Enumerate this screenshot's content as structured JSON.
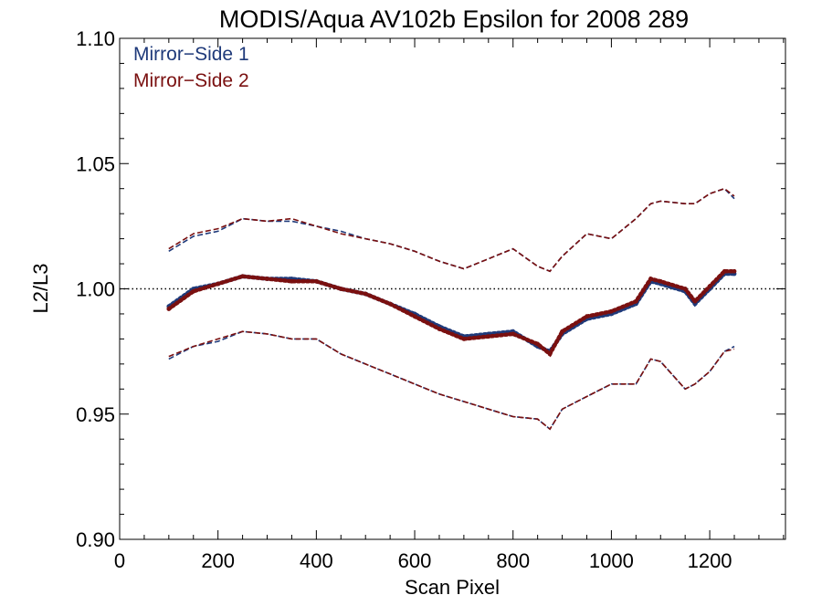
{
  "chart_data": {
    "type": "scatter",
    "title": "MODIS/Aqua AV102b Epsilon for 2008 289",
    "xlabel": "Scan Pixel",
    "ylabel": "L2/L3",
    "xlim": [
      0,
      1354
    ],
    "ylim": [
      0.9,
      1.1
    ],
    "x_ticks": [
      0,
      200,
      400,
      600,
      800,
      1000,
      1200
    ],
    "x_tick_labels": [
      "0",
      "200",
      "400",
      "600",
      "800",
      "1000",
      "1200"
    ],
    "y_ticks": [
      0.9,
      0.95,
      1.0,
      1.05,
      1.1
    ],
    "y_tick_labels": [
      "0.90",
      "0.95",
      "1.00",
      "1.05",
      "1.10"
    ],
    "reference_line": 1.0,
    "grid": false,
    "legend_position": "top-left",
    "colors": {
      "ms1": "#1f3a7a",
      "ms2": "#7a1010"
    },
    "series": [
      {
        "name": "Mirror−Side 1",
        "x": [
          100,
          150,
          200,
          250,
          300,
          350,
          400,
          450,
          500,
          550,
          600,
          650,
          700,
          750,
          800,
          850,
          875,
          900,
          950,
          1000,
          1050,
          1080,
          1100,
          1150,
          1170,
          1200,
          1230,
          1250
        ],
        "mean": [
          0.993,
          1.0,
          1.002,
          1.005,
          1.004,
          1.004,
          1.003,
          1.0,
          0.998,
          0.994,
          0.99,
          0.985,
          0.981,
          0.982,
          0.983,
          0.977,
          0.975,
          0.982,
          0.988,
          0.99,
          0.994,
          1.003,
          1.002,
          0.999,
          0.994,
          1.0,
          1.006,
          1.006
        ],
        "upper": [
          1.015,
          1.021,
          1.023,
          1.028,
          1.027,
          1.027,
          1.025,
          1.023,
          1.02,
          1.018,
          1.015,
          1.011,
          1.008,
          1.012,
          1.016,
          1.009,
          1.007,
          1.013,
          1.022,
          1.02,
          1.028,
          1.034,
          1.035,
          1.034,
          1.034,
          1.038,
          1.04,
          1.036
        ],
        "lower": [
          0.972,
          0.977,
          0.979,
          0.983,
          0.982,
          0.98,
          0.98,
          0.974,
          0.97,
          0.966,
          0.962,
          0.958,
          0.955,
          0.952,
          0.949,
          0.948,
          0.944,
          0.952,
          0.957,
          0.962,
          0.962,
          0.972,
          0.971,
          0.96,
          0.962,
          0.967,
          0.975,
          0.977
        ]
      },
      {
        "name": "Mirror−Side 2",
        "x": [
          100,
          150,
          200,
          250,
          300,
          350,
          400,
          450,
          500,
          550,
          600,
          650,
          700,
          750,
          800,
          850,
          875,
          900,
          950,
          1000,
          1050,
          1080,
          1100,
          1150,
          1170,
          1200,
          1230,
          1250
        ],
        "mean": [
          0.992,
          0.999,
          1.002,
          1.005,
          1.004,
          1.003,
          1.003,
          1.0,
          0.998,
          0.994,
          0.989,
          0.984,
          0.98,
          0.981,
          0.982,
          0.978,
          0.974,
          0.983,
          0.989,
          0.991,
          0.995,
          1.004,
          1.003,
          1.0,
          0.995,
          1.001,
          1.007,
          1.007
        ],
        "upper": [
          1.016,
          1.022,
          1.024,
          1.028,
          1.027,
          1.028,
          1.025,
          1.022,
          1.02,
          1.018,
          1.015,
          1.011,
          1.008,
          1.012,
          1.016,
          1.009,
          1.007,
          1.013,
          1.022,
          1.02,
          1.028,
          1.034,
          1.035,
          1.034,
          1.034,
          1.038,
          1.04,
          1.037
        ],
        "lower": [
          0.973,
          0.977,
          0.98,
          0.983,
          0.982,
          0.98,
          0.98,
          0.974,
          0.97,
          0.966,
          0.962,
          0.958,
          0.955,
          0.952,
          0.949,
          0.948,
          0.944,
          0.952,
          0.957,
          0.962,
          0.962,
          0.972,
          0.971,
          0.96,
          0.962,
          0.967,
          0.975,
          0.976
        ]
      }
    ]
  }
}
